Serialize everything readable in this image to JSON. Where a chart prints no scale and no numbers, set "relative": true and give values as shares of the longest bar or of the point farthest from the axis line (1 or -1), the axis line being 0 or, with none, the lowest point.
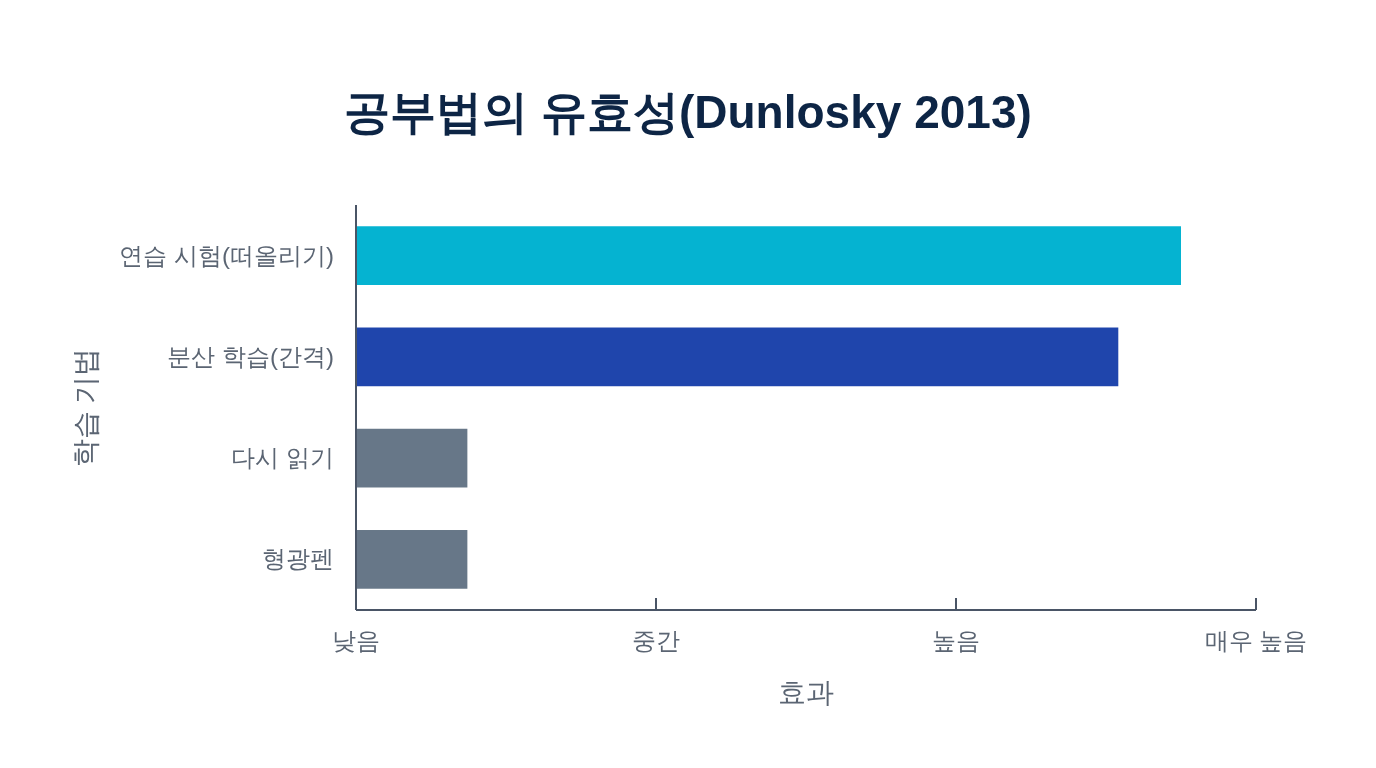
{
  "chart_data": {
    "type": "bar",
    "orientation": "horizontal",
    "relative": true,
    "title": "공부법의 유효성(Dunlosky 2013)",
    "xlabel": "효과",
    "ylabel": "학습 기법",
    "categories": [
      "연습 시험(떠올리기)",
      "분산 학습(간격)",
      "다시 읽기",
      "형광펜"
    ],
    "values": [
      1,
      0.924,
      0.135,
      0.135
    ],
    "colors": [
      "#05b3d1",
      "#1f45ac",
      "#677788",
      "#677788"
    ],
    "annotations": [
      "낮음",
      "중간",
      "높음",
      "매우 높음"
    ]
  }
}
